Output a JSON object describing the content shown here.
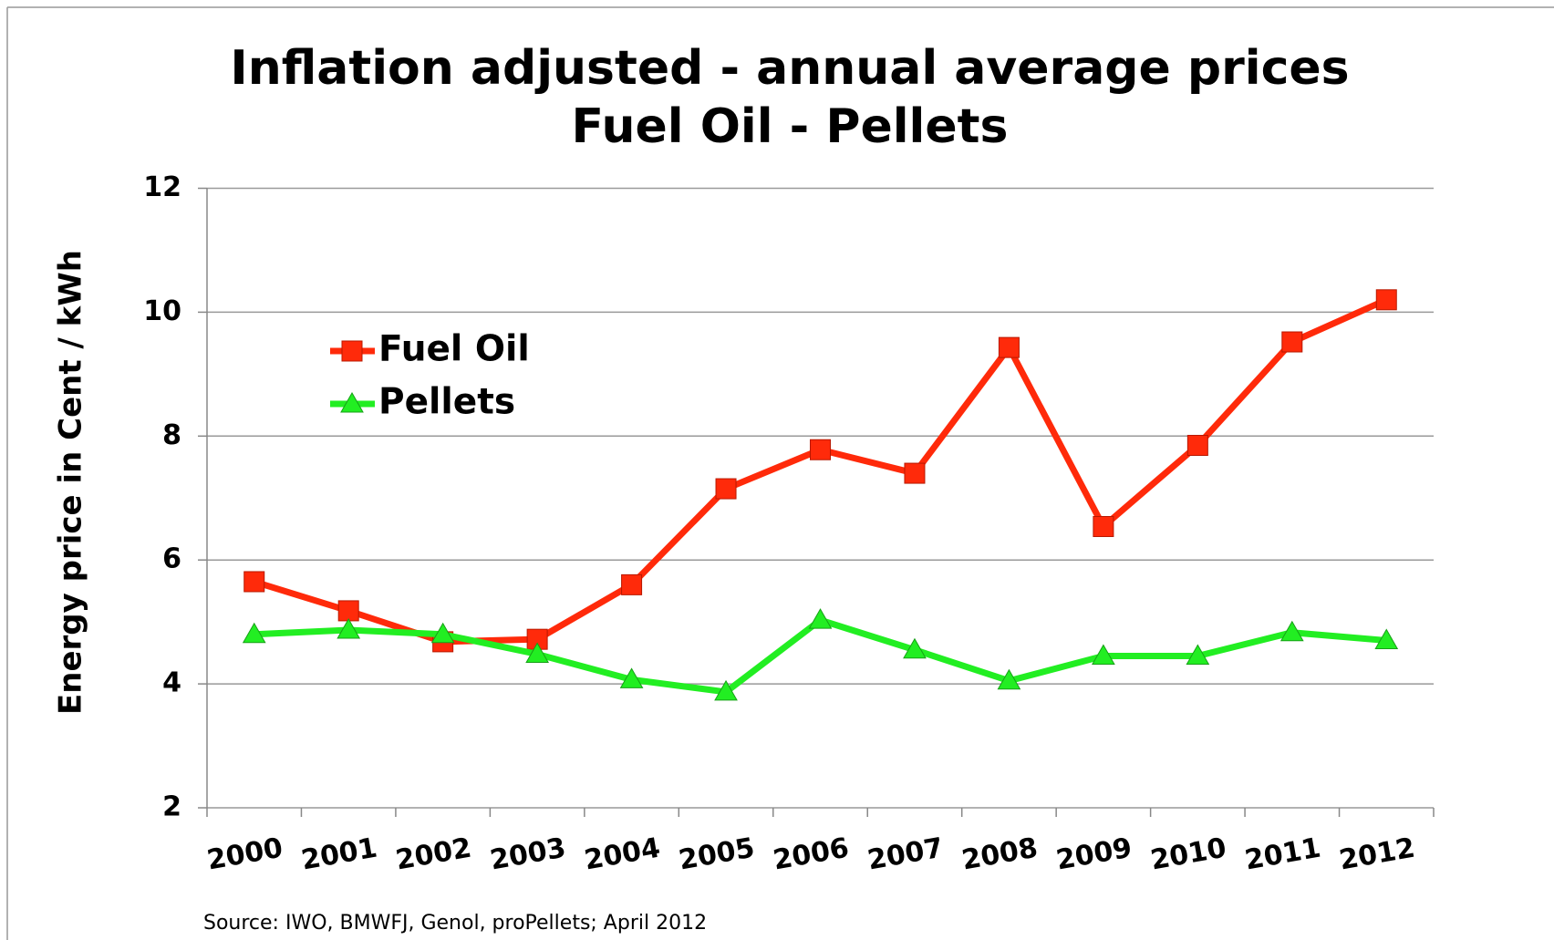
{
  "chart_data": {
    "type": "line",
    "title": [
      "Inflation adjusted - annual average prices",
      "Fuel Oil - Pellets"
    ],
    "y_label": "Energy price in Cent / kWh",
    "source": "Source: IWO, BMWFJ, Genol, proPellets; April 2012",
    "categories": [
      "2000",
      "2001",
      "2002",
      "2003",
      "2004",
      "2005",
      "2006",
      "2007",
      "2008",
      "2009",
      "2010",
      "2011",
      "2012"
    ],
    "series": [
      {
        "name": "Fuel Oil",
        "color": "#ff2a0a",
        "marker": "square",
        "values": [
          5.65,
          5.18,
          4.68,
          4.72,
          5.6,
          7.15,
          7.78,
          7.4,
          9.43,
          6.54,
          7.85,
          9.52,
          10.2
        ]
      },
      {
        "name": "Pellets",
        "color": "#22ee22",
        "marker": "triangle",
        "values": [
          4.8,
          4.87,
          4.8,
          4.48,
          4.07,
          3.87,
          5.03,
          4.55,
          4.05,
          4.45,
          4.45,
          4.83,
          4.7
        ]
      }
    ],
    "ylim": [
      2,
      12
    ],
    "yticks": [
      2,
      4,
      6,
      8,
      10,
      12
    ],
    "grid": true,
    "legend": "upper left"
  }
}
